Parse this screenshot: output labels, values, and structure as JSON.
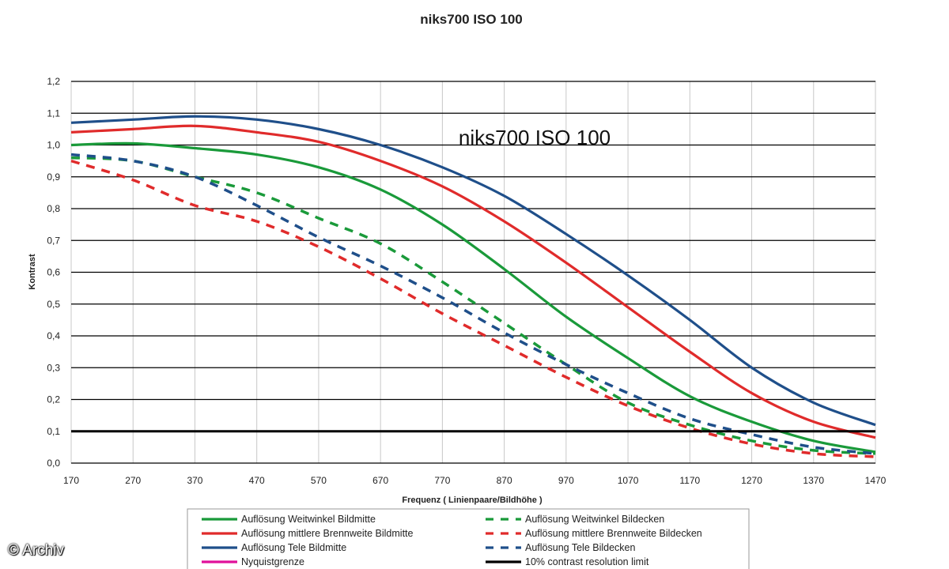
{
  "chart_data": {
    "type": "line",
    "title": "niks700 ISO 100",
    "inner_title": "niks700 ISO 100",
    "xlabel": "Frequenz ( Linienpaare/Bildhöhe )",
    "ylabel": "Kontrast",
    "xlim": [
      170,
      1470
    ],
    "ylim": [
      0,
      1.2
    ],
    "x_ticks": [
      "170",
      "270",
      "370",
      "470",
      "570",
      "670",
      "770",
      "870",
      "970",
      "1070",
      "1170",
      "1270",
      "1370",
      "1470"
    ],
    "y_ticks": [
      "0,0",
      "0,1",
      "0,2",
      "0,3",
      "0,4",
      "0,5",
      "0,6",
      "0,7",
      "0,8",
      "0,9",
      "1,0",
      "1,1",
      "1,2"
    ],
    "grid": "horizontal",
    "legend_position": "bottom",
    "threshold": {
      "name": "10% contrast resolution limit",
      "value": 0.1,
      "color": "#000000"
    },
    "series": [
      {
        "name": "Auflösung Weitwinkel Bildmitte",
        "color": "#1a9a3a",
        "style": "solid",
        "x": [
          170,
          270,
          370,
          470,
          570,
          670,
          770,
          870,
          970,
          1070,
          1170,
          1270,
          1370,
          1470
        ],
        "values": [
          1.0,
          1.005,
          0.99,
          0.97,
          0.93,
          0.86,
          0.75,
          0.61,
          0.46,
          0.33,
          0.21,
          0.13,
          0.07,
          0.035
        ]
      },
      {
        "name": "Auflösung mittlere Brennweite Bildmitte",
        "color": "#e02b2b",
        "style": "solid",
        "x": [
          170,
          270,
          370,
          470,
          570,
          670,
          770,
          870,
          970,
          1070,
          1170,
          1270,
          1370,
          1470
        ],
        "values": [
          1.04,
          1.05,
          1.06,
          1.04,
          1.01,
          0.95,
          0.87,
          0.76,
          0.63,
          0.49,
          0.35,
          0.22,
          0.13,
          0.08
        ]
      },
      {
        "name": "Auflösung Tele Bildmitte",
        "color": "#1f4f8a",
        "style": "solid",
        "x": [
          170,
          270,
          370,
          470,
          570,
          670,
          770,
          870,
          970,
          1070,
          1170,
          1270,
          1370,
          1470
        ],
        "values": [
          1.07,
          1.08,
          1.09,
          1.08,
          1.05,
          1.0,
          0.93,
          0.84,
          0.72,
          0.59,
          0.45,
          0.3,
          0.19,
          0.12
        ]
      },
      {
        "name": "Nyquistgrenze",
        "color": "#e0109a",
        "style": "solid",
        "x": [],
        "values": []
      },
      {
        "name": "Auflösung Weitwinkel Bildecken",
        "color": "#1a9a3a",
        "style": "dashed",
        "x": [
          170,
          270,
          370,
          470,
          570,
          670,
          770,
          870,
          970,
          1070,
          1170,
          1270,
          1370,
          1470
        ],
        "values": [
          0.96,
          0.95,
          0.9,
          0.85,
          0.77,
          0.69,
          0.57,
          0.44,
          0.31,
          0.19,
          0.12,
          0.07,
          0.04,
          0.03
        ]
      },
      {
        "name": "Auflösung mittlere Brennweite Bildecken",
        "color": "#e02b2b",
        "style": "dashed",
        "x": [
          170,
          270,
          370,
          470,
          570,
          670,
          770,
          870,
          970,
          1070,
          1170,
          1270,
          1370,
          1470
        ],
        "values": [
          0.95,
          0.89,
          0.81,
          0.76,
          0.68,
          0.58,
          0.47,
          0.37,
          0.27,
          0.18,
          0.11,
          0.06,
          0.03,
          0.02
        ]
      },
      {
        "name": "Auflösung Tele Bildecken",
        "color": "#1f4f8a",
        "style": "dashed",
        "x": [
          170,
          270,
          370,
          470,
          570,
          670,
          770,
          870,
          970,
          1070,
          1170,
          1270,
          1370,
          1470
        ],
        "values": [
          0.97,
          0.95,
          0.9,
          0.81,
          0.71,
          0.62,
          0.52,
          0.41,
          0.31,
          0.22,
          0.14,
          0.09,
          0.05,
          0.03
        ]
      },
      {
        "name": "10% contrast resolution limit",
        "color": "#000000",
        "style": "solid",
        "x": [
          170,
          1470
        ],
        "values": [
          0.1,
          0.1
        ]
      }
    ]
  },
  "copyright": "© Archiv"
}
